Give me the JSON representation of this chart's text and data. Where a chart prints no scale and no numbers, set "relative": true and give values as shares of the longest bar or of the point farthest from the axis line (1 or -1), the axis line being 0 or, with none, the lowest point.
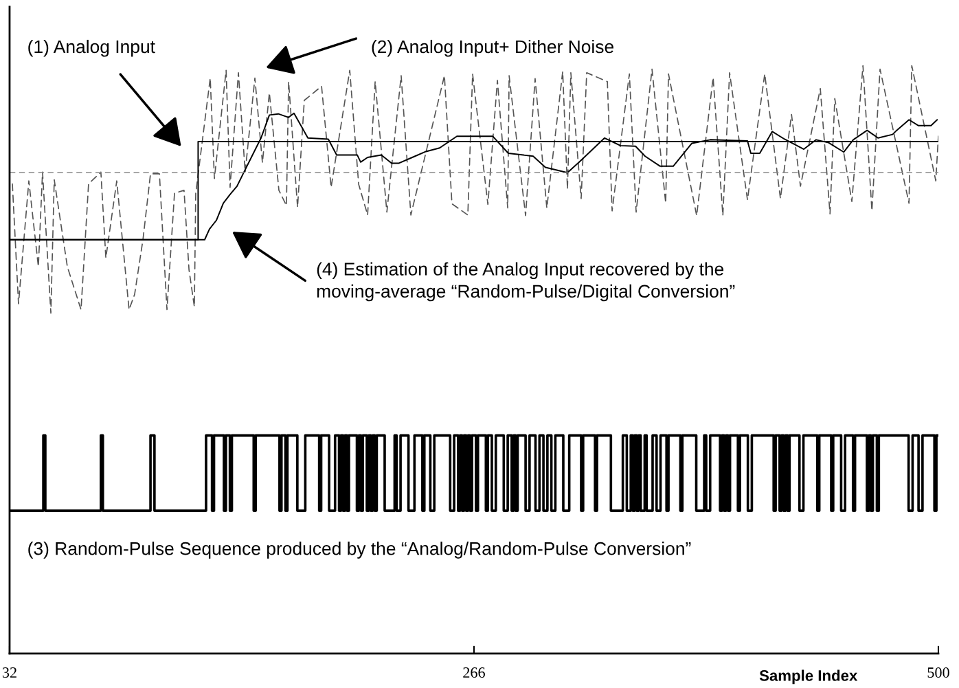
{
  "chart_data": {
    "type": "line",
    "relative": true,
    "xlabel": "Sample Index",
    "xlim": [
      32,
      500
    ],
    "xticks": [
      32,
      266,
      500
    ],
    "tick_labels": "x",
    "grid": false,
    "legend": false,
    "series": [
      {
        "color": "#555555",
        "line_style": "dashed",
        "x": [
          33.4,
          36.5,
          41.7,
          46.5,
          48.6,
          52.8,
          54.5,
          61.1,
          68.0,
          71.8,
          78.0,
          80.5,
          86.0,
          92.2,
          95.0,
          99.2,
          103.0,
          107.5,
          111.3,
          115.1,
          119.9,
          122.4,
          125.1,
          125.8,
          133.1,
          135.2,
          141.1,
          143.1,
          147.3,
          150.7,
          155.6,
          159.4,
          162.9,
          167.7,
          171.5,
          172.6,
          177.1,
          180.5,
          189.2,
          194.0,
          203.4,
          207.9,
          212.4,
          216.2,
          222.1,
          229.3,
          234.2,
          251.1,
          254.9,
          262.9,
          265.3,
          273.0,
          277.8,
          283.0,
          283.7,
          292.0,
          296.8,
          302.7,
          310.7,
          313.1,
          314.8,
          320.0,
          322.8,
          333.2,
          335.6,
          344.3,
          347.7,
          355.7,
          362.6,
          364.0,
          378.2,
          386.5,
          391.4,
          394.8,
          403.8,
          412.5,
          420.4,
          426.0,
          430.5,
          440.5,
          445.4,
          447.8,
          456.4,
          462.0,
          466.5,
          470.6,
          485.2,
          486.6,
          498.7,
          500.0
        ],
        "values": [
          0.799,
          0.595,
          0.804,
          0.658,
          0.819,
          0.579,
          0.806,
          0.658,
          0.585,
          0.799,
          0.819,
          0.673,
          0.804,
          0.585,
          0.611,
          0.704,
          0.816,
          0.816,
          0.585,
          0.783,
          0.788,
          0.653,
          0.59,
          0.783,
          0.979,
          0.808,
          0.992,
          0.793,
          0.988,
          0.819,
          0.979,
          0.835,
          0.954,
          0.788,
          0.762,
          0.973,
          0.759,
          0.941,
          0.965,
          0.793,
          0.992,
          0.798,
          0.746,
          0.973,
          0.751,
          0.983,
          0.746,
          0.983,
          0.765,
          0.746,
          0.986,
          0.764,
          0.975,
          0.758,
          0.983,
          0.745,
          0.978,
          0.758,
          0.99,
          0.79,
          0.988,
          0.774,
          0.988,
          0.973,
          0.753,
          0.986,
          0.751,
          0.994,
          0.766,
          0.986,
          0.745,
          0.98,
          0.745,
          0.988,
          0.772,
          0.986,
          0.774,
          0.917,
          0.795,
          0.961,
          0.748,
          0.944,
          0.769,
          1.0,
          0.753,
          0.994,
          0.766,
          1.0,
          0.804,
          0.88
        ]
      },
      {
        "color": "#000000",
        "line_style": "solid",
        "x": [
          32,
          127,
          127,
          500
        ],
        "values": [
          0.704,
          0.704,
          0.871,
          0.871
        ]
      },
      {
        "color": "#000000",
        "line_style": "solid",
        "x": [
          32,
          127.5,
          130.3,
          132.7,
          136.2,
          139.7,
          143.1,
          146.6,
          150.1,
          153.5,
          158.7,
          162.9,
          167.4,
          172.6,
          175.3,
          179.5,
          182.3,
          192.6,
          196.8,
          207.2,
          208.9,
          212.4,
          219.3,
          224.5,
          228.0,
          234.9,
          241.8,
          248.7,
          257.4,
          266.0,
          275.4,
          283.3,
          295.8,
          302.0,
          313.1,
          319.3,
          331.8,
          339.8,
          347.4,
          352.2,
          359.8,
          366.4,
          375.8,
          385.1,
          403.8,
          405.5,
          410.0,
          416.3,
          422.5,
          432.2,
          438.4,
          444.7,
          452.3,
          457.1,
          464.1,
          469.6,
          476.9,
          479.0,
          485.2,
          490.0,
          496.3,
          499.4
        ],
        "values": [
          0.704,
          0.704,
          0.704,
          0.722,
          0.737,
          0.766,
          0.781,
          0.795,
          0.819,
          0.842,
          0.877,
          0.916,
          0.918,
          0.912,
          0.919,
          0.894,
          0.877,
          0.875,
          0.848,
          0.848,
          0.836,
          0.844,
          0.848,
          0.834,
          0.834,
          0.844,
          0.854,
          0.86,
          0.88,
          0.88,
          0.88,
          0.851,
          0.846,
          0.827,
          0.818,
          0.837,
          0.877,
          0.864,
          0.863,
          0.846,
          0.829,
          0.829,
          0.868,
          0.874,
          0.872,
          0.851,
          0.851,
          0.888,
          0.875,
          0.858,
          0.874,
          0.869,
          0.853,
          0.874,
          0.89,
          0.877,
          0.883,
          0.89,
          0.908,
          0.898,
          0.898,
          0.908
        ]
      },
      {
        "type": "step",
        "color": "#000000",
        "line_style": "solid",
        "x": [
          32,
          49,
          50,
          78,
          79,
          103,
          105,
          131,
          134,
          135,
          140,
          141,
          143,
          144,
          155,
          156,
          168,
          169,
          171,
          172,
          177,
          181,
          188,
          189,
          193,
          196,
          198,
          199,
          200,
          201,
          202,
          203,
          207,
          208,
          209,
          210,
          212,
          213,
          214,
          215,
          216,
          217,
          221,
          226,
          227,
          229,
          233,
          236,
          240,
          241,
          244,
          246,
          254,
          256,
          258,
          259,
          260,
          261,
          262,
          263,
          264,
          265,
          267,
          268,
          272,
          273,
          275,
          277,
          281,
          283,
          285,
          286,
          287,
          288,
          292,
          294,
          297,
          299,
          301,
          303,
          305,
          307,
          311,
          314,
          320,
          321,
          327,
          328,
          335,
          341,
          343,
          345,
          346,
          347,
          348,
          349,
          350,
          352,
          353,
          356,
          358,
          360,
          363,
          364,
          370,
          371,
          378,
          382,
          383,
          385,
          390,
          391,
          392,
          393,
          394,
          395,
          399,
          400,
          404,
          406,
          417,
          418,
          420,
          421,
          422,
          423,
          424,
          425,
          430,
          432,
          439,
          440,
          446,
          447,
          451,
          453,
          457,
          458,
          464,
          465,
          466,
          467,
          469,
          470,
          485,
          487,
          490,
          492,
          498,
          499,
          500
        ],
        "values": [
          0.243,
          0.371,
          0.243,
          0.371,
          0.243,
          0.371,
          0.243,
          0.371,
          0.243,
          0.371,
          0.243,
          0.371,
          0.243,
          0.371,
          0.243,
          0.371,
          0.243,
          0.371,
          0.243,
          0.371,
          0.243,
          0.371,
          0.243,
          0.371,
          0.243,
          0.371,
          0.243,
          0.371,
          0.243,
          0.371,
          0.243,
          0.371,
          0.243,
          0.371,
          0.243,
          0.371,
          0.243,
          0.371,
          0.243,
          0.371,
          0.243,
          0.371,
          0.243,
          0.371,
          0.243,
          0.371,
          0.243,
          0.371,
          0.243,
          0.371,
          0.243,
          0.371,
          0.243,
          0.371,
          0.243,
          0.371,
          0.243,
          0.371,
          0.243,
          0.371,
          0.243,
          0.371,
          0.243,
          0.371,
          0.243,
          0.371,
          0.243,
          0.371,
          0.243,
          0.371,
          0.243,
          0.371,
          0.243,
          0.371,
          0.243,
          0.371,
          0.243,
          0.371,
          0.243,
          0.371,
          0.243,
          0.371,
          0.243,
          0.371,
          0.243,
          0.371,
          0.243,
          0.371,
          0.243,
          0.371,
          0.243,
          0.371,
          0.243,
          0.371,
          0.243,
          0.371,
          0.243,
          0.371,
          0.243,
          0.371,
          0.243,
          0.371,
          0.243,
          0.371,
          0.243,
          0.371,
          0.243,
          0.371,
          0.243,
          0.371,
          0.243,
          0.371,
          0.243,
          0.371,
          0.243,
          0.371,
          0.243,
          0.371,
          0.243,
          0.371,
          0.243,
          0.371,
          0.243,
          0.371,
          0.243,
          0.371,
          0.243,
          0.371,
          0.243,
          0.371,
          0.243,
          0.371,
          0.243,
          0.371,
          0.243,
          0.371,
          0.243,
          0.371,
          0.243,
          0.371,
          0.243,
          0.371,
          0.243,
          0.371,
          0.243,
          0.371,
          0.243,
          0.371,
          0.243,
          0.371,
          0.371
        ]
      }
    ],
    "ref_lines": [
      {
        "axis": "y",
        "value": 0.818,
        "color": "#888888",
        "line_style": "dashed"
      }
    ],
    "annotations": [
      "(1) Analog Input",
      "(2) Analog Input+ Dither Noise",
      "(4) Estimation of the Analog Input recovered by the\nmoving-average “Random-Pulse/Digital Conversion”",
      "(3) Random-Pulse Sequence produced by the “Analog/Random-Pulse Conversion”"
    ]
  }
}
